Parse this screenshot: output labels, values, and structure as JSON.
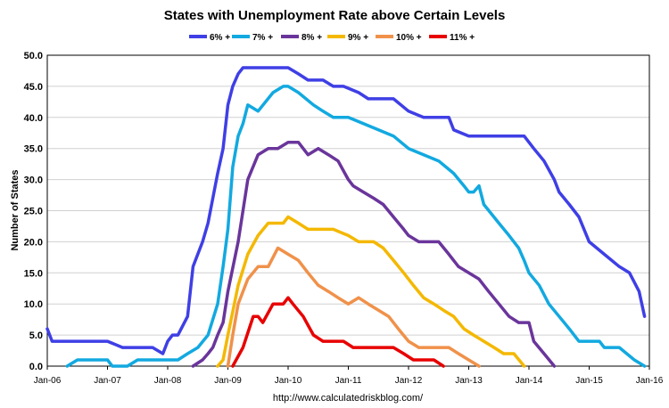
{
  "chart_data": {
    "type": "line",
    "title": "States with Unemployment Rate above Certain Levels",
    "xlabel": "",
    "ylabel": "Number of States",
    "source": "http://www.calculatedriskblog.com/",
    "ylim": [
      0,
      50
    ],
    "yticks": [
      "0.0",
      "5.0",
      "10.0",
      "15.0",
      "20.0",
      "25.0",
      "30.0",
      "35.0",
      "40.0",
      "45.0",
      "50.0"
    ],
    "xlim": [
      2006.0,
      2016.0
    ],
    "xticks": [
      {
        "label": "Jan-06",
        "x": 2006.0
      },
      {
        "label": "Jan-07",
        "x": 2007.0
      },
      {
        "label": "Jan-08",
        "x": 2008.0
      },
      {
        "label": "Jan-09",
        "x": 2009.0
      },
      {
        "label": "Jan-10",
        "x": 2010.0
      },
      {
        "label": "Jan-11",
        "x": 2011.0
      },
      {
        "label": "Jan-12",
        "x": 2012.0
      },
      {
        "label": "Jan-13",
        "x": 2013.0
      },
      {
        "label": "Jan-14",
        "x": 2014.0
      },
      {
        "label": "Jan-15",
        "x": 2015.0
      },
      {
        "label": "Jan-16",
        "x": 2016.0
      }
    ],
    "grid": true,
    "legend_position": "top",
    "series": [
      {
        "name": "6% +",
        "color": "#3f3fe6",
        "x": [
          2006.0,
          2006.08,
          2006.25,
          2006.5,
          2007.0,
          2007.25,
          2007.5,
          2007.75,
          2007.92,
          2008.0,
          2008.08,
          2008.17,
          2008.33,
          2008.42,
          2008.58,
          2008.67,
          2008.83,
          2008.92,
          2009.0,
          2009.08,
          2009.17,
          2009.25,
          2009.33,
          2009.42,
          2009.5,
          2009.75,
          2010.0,
          2010.17,
          2010.33,
          2010.58,
          2010.75,
          2010.92,
          2011.17,
          2011.33,
          2011.5,
          2011.75,
          2012.0,
          2012.25,
          2012.5,
          2012.67,
          2012.75,
          2013.0,
          2013.25,
          2013.5,
          2013.75,
          2013.92,
          2014.08,
          2014.25,
          2014.42,
          2014.5,
          2014.67,
          2014.83,
          2015.0,
          2015.25,
          2015.5,
          2015.67,
          2015.83,
          2015.92
        ],
        "values": [
          6,
          4,
          4,
          4,
          4,
          3,
          3,
          3,
          2,
          4,
          5,
          5,
          8,
          16,
          20,
          23,
          31,
          35,
          42,
          45,
          47,
          48,
          48,
          48,
          48,
          48,
          48,
          47,
          46,
          46,
          45,
          45,
          44,
          43,
          43,
          43,
          41,
          40,
          40,
          40,
          38,
          37,
          37,
          37,
          37,
          37,
          35,
          33,
          30,
          28,
          26,
          24,
          20,
          18,
          16,
          15,
          12,
          8
        ]
      },
      {
        "name": "7% +",
        "color": "#12a9e0",
        "x": [
          2006.33,
          2006.5,
          2007.0,
          2007.08,
          2007.33,
          2007.5,
          2007.75,
          2008.0,
          2008.17,
          2008.33,
          2008.5,
          2008.67,
          2008.83,
          2008.92,
          2009.0,
          2009.08,
          2009.17,
          2009.25,
          2009.33,
          2009.5,
          2009.75,
          2009.92,
          2010.0,
          2010.17,
          2010.42,
          2010.58,
          2010.75,
          2011.0,
          2011.25,
          2011.5,
          2011.75,
          2012.0,
          2012.25,
          2012.5,
          2012.75,
          2012.92,
          2013.0,
          2013.08,
          2013.17,
          2013.25,
          2013.5,
          2013.67,
          2013.83,
          2013.92,
          2014.0,
          2014.17,
          2014.33,
          2014.5,
          2014.67,
          2014.75,
          2014.83,
          2015.0,
          2015.17,
          2015.25,
          2015.5,
          2015.75,
          2015.92
        ],
        "values": [
          0,
          1,
          1,
          0,
          0,
          1,
          1,
          1,
          1,
          2,
          3,
          5,
          10,
          16,
          22,
          32,
          37,
          39,
          42,
          41,
          44,
          45,
          45,
          44,
          42,
          41,
          40,
          40,
          39,
          38,
          37,
          35,
          34,
          33,
          31,
          29,
          28,
          28,
          29,
          26,
          23,
          21,
          19,
          17,
          15,
          13,
          10,
          8,
          6,
          5,
          4,
          4,
          4,
          3,
          3,
          1,
          0
        ]
      },
      {
        "name": "8% +",
        "color": "#6a359b",
        "x": [
          2008.42,
          2008.58,
          2008.67,
          2008.75,
          2008.83,
          2008.92,
          2009.0,
          2009.17,
          2009.33,
          2009.5,
          2009.67,
          2009.83,
          2010.0,
          2010.17,
          2010.33,
          2010.5,
          2010.67,
          2010.83,
          2011.0,
          2011.08,
          2011.25,
          2011.42,
          2011.58,
          2011.75,
          2011.92,
          2012.0,
          2012.17,
          2012.33,
          2012.5,
          2012.67,
          2012.83,
          2013.0,
          2013.17,
          2013.33,
          2013.5,
          2013.67,
          2013.83,
          2014.0,
          2014.08,
          2014.25,
          2014.42
        ],
        "values": [
          0,
          1,
          2,
          3,
          5,
          7,
          12,
          20,
          30,
          34,
          35,
          35,
          36,
          36,
          34,
          35,
          34,
          33,
          30,
          29,
          28,
          27,
          26,
          24,
          22,
          21,
          20,
          20,
          20,
          18,
          16,
          15,
          14,
          12,
          10,
          8,
          7,
          7,
          4,
          2,
          0
        ]
      },
      {
        "name": "9% +",
        "color": "#f4b800",
        "x": [
          2008.83,
          2008.92,
          2009.0,
          2009.17,
          2009.33,
          2009.5,
          2009.67,
          2009.92,
          2010.0,
          2010.17,
          2010.33,
          2010.5,
          2010.75,
          2011.0,
          2011.17,
          2011.42,
          2011.58,
          2011.75,
          2011.92,
          2012.08,
          2012.25,
          2012.42,
          2012.58,
          2012.75,
          2012.92,
          2013.08,
          2013.25,
          2013.42,
          2013.58,
          2013.75,
          2013.92
        ],
        "values": [
          0,
          1,
          5,
          13,
          18,
          21,
          23,
          23,
          24,
          23,
          22,
          22,
          22,
          21,
          20,
          20,
          19,
          17,
          15,
          13,
          11,
          10,
          9,
          8,
          6,
          5,
          4,
          3,
          2,
          2,
          0
        ]
      },
      {
        "name": "10% +",
        "color": "#f0914a",
        "x": [
          2009.0,
          2009.08,
          2009.17,
          2009.33,
          2009.5,
          2009.67,
          2009.83,
          2010.0,
          2010.17,
          2010.33,
          2010.5,
          2010.67,
          2010.83,
          2011.0,
          2011.17,
          2011.33,
          2011.5,
          2011.67,
          2011.83,
          2012.0,
          2012.17,
          2012.33,
          2012.5,
          2012.67,
          2012.83,
          2013.0,
          2013.17
        ],
        "values": [
          0,
          5,
          10,
          14,
          16,
          16,
          19,
          18,
          17,
          15,
          13,
          12,
          11,
          10,
          11,
          10,
          9,
          8,
          6,
          4,
          3,
          3,
          3,
          3,
          2,
          1,
          0
        ]
      },
      {
        "name": "11% +",
        "color": "#e80000",
        "x": [
          2009.08,
          2009.25,
          2009.42,
          2009.5,
          2009.58,
          2009.75,
          2009.92,
          2010.0,
          2010.08,
          2010.25,
          2010.42,
          2010.58,
          2010.75,
          2010.92,
          2011.08,
          2011.25,
          2011.42,
          2011.58,
          2011.75,
          2011.92,
          2012.08,
          2012.25,
          2012.42,
          2012.58
        ],
        "values": [
          0,
          3,
          8,
          8,
          7,
          10,
          10,
          11,
          10,
          8,
          5,
          4,
          4,
          4,
          3,
          3,
          3,
          3,
          3,
          2,
          1,
          1,
          1,
          0
        ]
      }
    ]
  }
}
